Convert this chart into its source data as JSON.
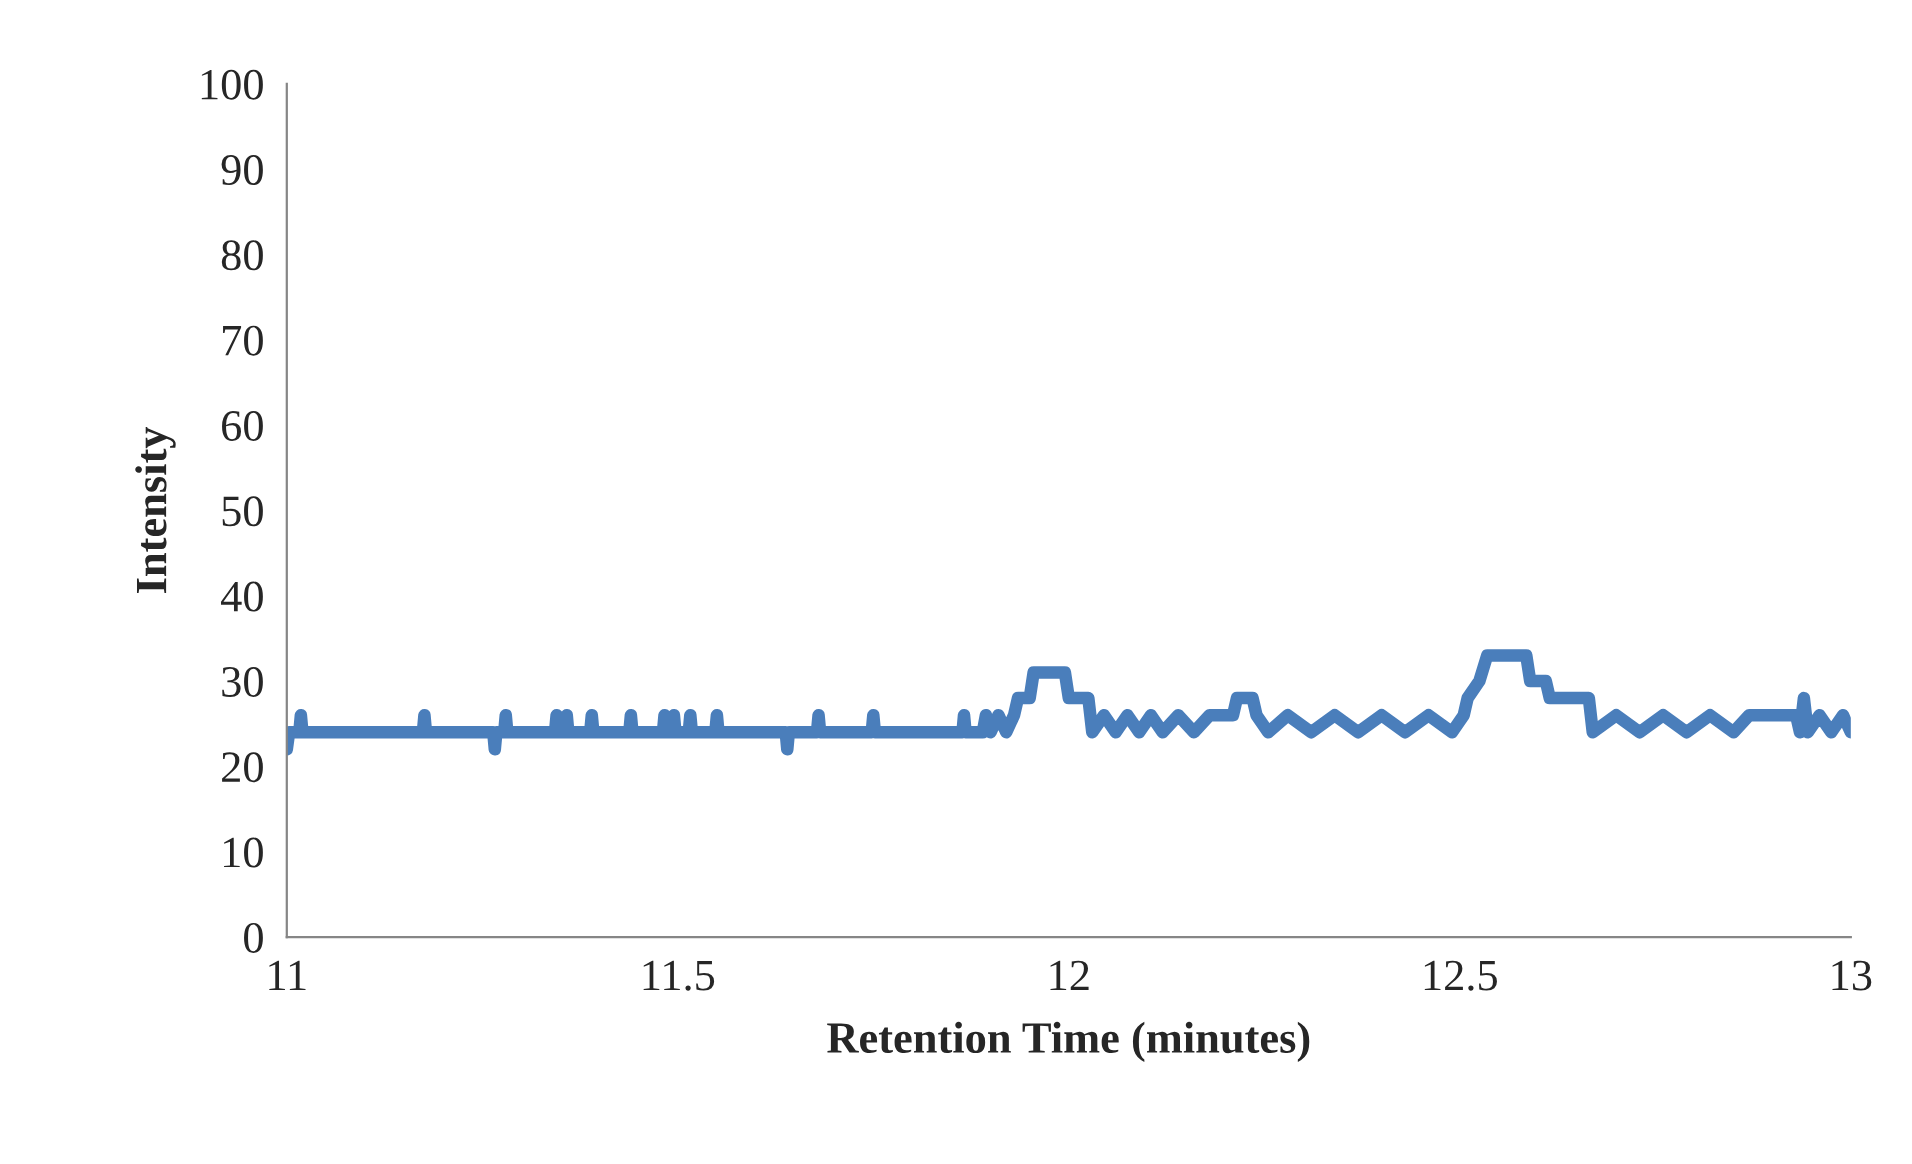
{
  "chart_data": {
    "type": "line",
    "xlabel": "Retention Time (minutes)",
    "ylabel": "Intensity",
    "xlim": [
      11,
      13
    ],
    "xticks": [
      11,
      11.5,
      12,
      12.5,
      13
    ],
    "ylim": [
      0,
      100
    ],
    "yticks": [
      0,
      10,
      20,
      30,
      40,
      50,
      60,
      70,
      80,
      90,
      100
    ],
    "grid": false,
    "marker": "none",
    "line_style": "solid",
    "series": [
      {
        "color": "#4a7ebb",
        "x": [
          11.0,
          11.003,
          11.016,
          11.018,
          11.02,
          11.174,
          11.176,
          11.178,
          11.264,
          11.266,
          11.268,
          11.278,
          11.28,
          11.282,
          11.343,
          11.345,
          11.347,
          11.356,
          11.358,
          11.36,
          11.388,
          11.39,
          11.392,
          11.438,
          11.44,
          11.442,
          11.481,
          11.483,
          11.485,
          11.493,
          11.495,
          11.497,
          11.514,
          11.516,
          11.518,
          11.548,
          11.55,
          11.552,
          11.638,
          11.64,
          11.642,
          11.678,
          11.68,
          11.682,
          11.748,
          11.75,
          11.752,
          11.864,
          11.866,
          11.868,
          11.89,
          11.894,
          11.9,
          11.91,
          11.92,
          11.93,
          11.935,
          11.95,
          11.955,
          11.995,
          12.0,
          12.025,
          12.03,
          12.045,
          12.06,
          12.075,
          12.09,
          12.105,
          12.12,
          12.14,
          12.16,
          12.18,
          12.21,
          12.215,
          12.235,
          12.24,
          12.255,
          12.28,
          12.31,
          12.34,
          12.37,
          12.4,
          12.43,
          12.46,
          12.49,
          12.505,
          12.51,
          12.525,
          12.535,
          12.585,
          12.59,
          12.61,
          12.615,
          12.665,
          12.67,
          12.7,
          12.73,
          12.76,
          12.79,
          12.82,
          12.85,
          12.87,
          12.93,
          12.935,
          12.94,
          12.945,
          12.96,
          12.975,
          12.99,
          13.0
        ],
        "values": [
          22,
          24,
          24,
          26,
          24,
          24,
          26,
          24,
          24,
          22,
          24,
          24,
          26,
          24,
          24,
          26,
          24,
          24,
          26,
          24,
          24,
          26,
          24,
          24,
          26,
          24,
          24,
          26,
          24,
          24,
          26,
          24,
          24,
          26,
          24,
          24,
          26,
          24,
          24,
          22,
          24,
          24,
          26,
          24,
          24,
          26,
          24,
          24,
          26,
          24,
          24,
          26,
          24,
          26,
          24,
          26,
          28,
          28,
          31,
          31,
          28,
          28,
          24,
          26,
          24,
          26,
          24,
          26,
          24,
          26,
          24,
          26,
          26,
          28,
          28,
          26,
          24,
          26,
          24,
          26,
          24,
          26,
          24,
          26,
          24,
          26,
          28,
          30,
          33,
          33,
          30,
          30,
          28,
          28,
          24,
          26,
          24,
          26,
          24,
          26,
          24,
          26,
          26,
          24,
          28,
          24,
          26,
          24,
          26,
          24
        ]
      }
    ]
  }
}
